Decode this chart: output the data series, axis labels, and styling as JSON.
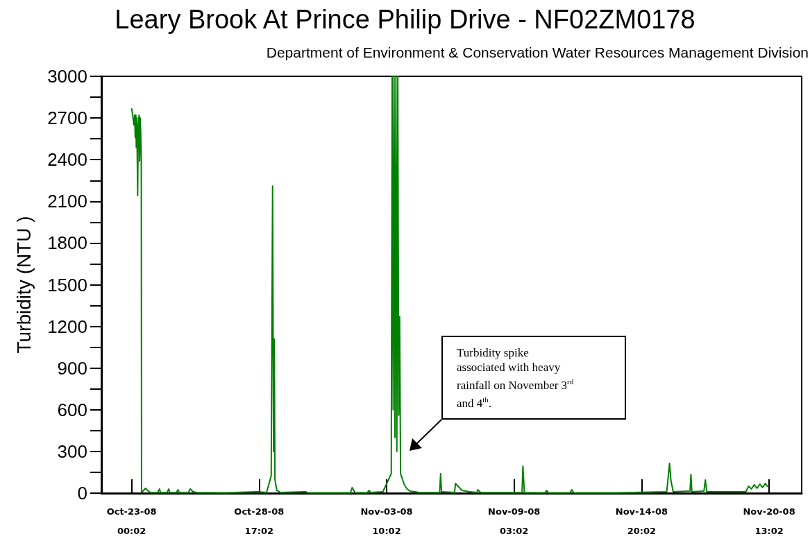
{
  "chart_data": {
    "type": "line",
    "title": "Leary Brook At Prince Philip Drive - NF02ZM0178",
    "subtitle": "Department of Environment & Conservation Water Resources Management Division",
    "ylabel": "Turbidity (NTU )",
    "color": "#008000",
    "grid": false,
    "x": [
      "--10-23T00:02",
      "--10-23T01:14",
      "--10-23T02:26",
      "--10-23T03:20",
      "--10-23T03:56",
      "--10-23T04:32",
      "--10-23T05:02",
      "--10-23T05:38",
      "--10-23T06:32",
      "--10-23T07:08",
      "--10-23T08:02",
      "--10-23T08:38",
      "--10-23T09:14",
      "--10-23T09:50",
      "--10-23T10:26",
      "--10-23T10:44",
      "--10-23T15:02",
      "--10-23T17:02",
      "--10-23T20:02",
      "--10-24T04:02",
      "--10-24T06:02",
      "--10-24T07:02",
      "--10-24T14:02",
      "--10-24T16:02",
      "--10-24T17:02",
      "--10-25T00:02",
      "--10-25T02:02",
      "--10-25T03:02",
      "--10-25T13:02",
      "--10-25T15:02",
      "--10-25T18:02",
      "--10-25T22:02",
      "--10-27T04:02",
      "--10-28T15:02",
      "--10-29T01:02",
      "--10-29T06:02",
      "--10-29T07:32",
      "--10-29T08:32",
      "--10-29T09:20",
      "--10-29T10:02",
      "--10-29T12:02",
      "--10-29T16:02",
      "--10-30T19:02",
      "--10-30T22:02",
      "--11-01T19:02",
      "--11-01T21:02",
      "--11-02T00:02",
      "--11-02T13:02",
      "--11-02T15:02",
      "--11-02T17:02",
      "--11-03T06:02",
      "--11-03T15:02",
      "--11-03T16:02",
      "--11-03T17:02",
      "--11-03T18:02",
      "--11-03T19:02",
      "--11-03T20:02",
      "--11-03T21:02",
      "--11-03T22:02",
      "--11-03T23:02",
      "--11-04T00:02",
      "--11-04T01:02",
      "--11-04T03:02",
      "--11-04T05:02",
      "--11-04T08:02",
      "--11-04T11:02",
      "--11-04T21:02",
      "--11-05T19:02",
      "--11-05T20:02",
      "--11-05T21:02",
      "--11-06T11:02",
      "--11-06T12:02",
      "--11-06T19:02",
      "--11-07T03:02",
      "--11-07T11:02",
      "--11-07T12:02",
      "--11-07T15:02",
      "--11-09T11:32",
      "--11-09T12:32",
      "--11-09T14:02",
      "--11-10T12:02",
      "--11-10T14:02",
      "--11-10T16:02",
      "--11-11T15:02",
      "--11-11T17:02",
      "--11-11T19:02",
      "--11-13T16:02",
      "--11-15T23:02",
      "--11-16T02:02",
      "--11-16T03:32",
      "--11-16T06:02",
      "--11-17T00:02",
      "--11-17T01:02",
      "--11-17T02:02",
      "--11-17T15:02",
      "--11-17T16:32",
      "--11-17T18:02",
      "--11-19T12:02",
      "--11-19T15:02",
      "--11-19T18:02",
      "--11-19T21:02",
      "--11-20T00:02",
      "--11-20T03:02",
      "--11-20T06:02",
      "--11-20T09:02",
      "--11-20T11:32"
    ],
    "values": [
      2770,
      2720,
      2650,
      2720,
      2560,
      2720,
      2490,
      2700,
      2140,
      2640,
      2720,
      2390,
      2700,
      2590,
      2390,
      5,
      35,
      20,
      5,
      5,
      30,
      5,
      5,
      30,
      5,
      5,
      25,
      5,
      5,
      30,
      10,
      5,
      2,
      10,
      5,
      125,
      2210,
      300,
      1110,
      100,
      20,
      5,
      10,
      2,
      2,
      40,
      5,
      2,
      20,
      5,
      10,
      140,
      3000,
      600,
      3000,
      400,
      3000,
      300,
      3000,
      560,
      1270,
      140,
      100,
      60,
      30,
      15,
      5,
      5,
      140,
      10,
      5,
      70,
      20,
      10,
      5,
      25,
      5,
      5,
      195,
      5,
      2,
      20,
      2,
      2,
      25,
      2,
      2,
      10,
      215,
      90,
      10,
      15,
      135,
      10,
      15,
      95,
      10,
      10,
      50,
      30,
      60,
      35,
      65,
      40,
      70,
      45
    ],
    "xlim": [
      "--10-21T15:30",
      "--11-22T00:02"
    ],
    "xticks": [
      {
        "value": "--10-23T00:02",
        "label": "Oct-23-08\n00:02"
      },
      {
        "value": "--10-28T17:02",
        "label": "Oct-28-08\n17:02"
      },
      {
        "value": "--11-03T10:02",
        "label": "Nov-03-08\n10:02"
      },
      {
        "value": "--11-09T03:02",
        "label": "Nov-09-08\n03:02"
      },
      {
        "value": "--11-14T20:02",
        "label": "Nov-14-08\n20:02"
      },
      {
        "value": "--11-20T13:02",
        "label": "Nov-20-08\n13:02"
      }
    ],
    "ylim": [
      0,
      3000
    ],
    "yticks": [
      0,
      {
        "value": 150,
        "label": null
      },
      300,
      {
        "value": 450,
        "label": null
      },
      600,
      {
        "value": 750,
        "label": null
      },
      900,
      {
        "value": 1050,
        "label": null
      },
      1200,
      {
        "value": 1350,
        "label": null
      },
      1500,
      {
        "value": 1650,
        "label": null
      },
      1800,
      {
        "value": 1950,
        "label": null
      },
      2100,
      {
        "value": 2250,
        "label": null
      },
      2400,
      {
        "value": 2550,
        "label": null
      },
      2700,
      {
        "value": 2850,
        "label": null
      },
      3000
    ],
    "annotations": [
      "Turbidity spike associated with heavy rainfall on November 3$^{rd}$ and 4$^{th}$."
    ]
  }
}
